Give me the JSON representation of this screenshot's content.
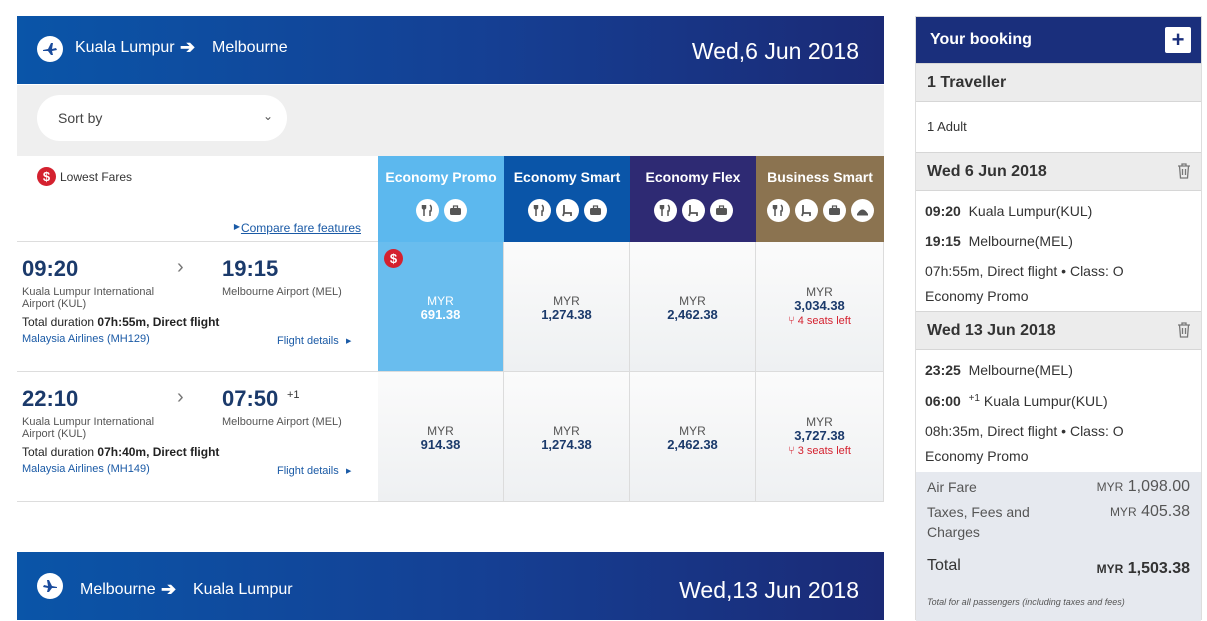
{
  "outbound": {
    "from": "Kuala Lumpur",
    "to": "Melbourne",
    "date": "Wed,6 Jun 2018"
  },
  "return_route": {
    "from": "Melbourne",
    "to": "Kuala Lumpur",
    "date": "Wed,13 Jun 2018"
  },
  "sort": {
    "label": "Sort by"
  },
  "legend": {
    "lowest_fares": "Lowest Fares",
    "compare": "Compare fare features",
    "badge_symbol": "$"
  },
  "fare_classes": [
    {
      "name": "Economy Promo",
      "color": "#5cb8ee",
      "icons": [
        "meal-icon",
        "baggage-icon"
      ]
    },
    {
      "name": "Economy Smart",
      "color": "#0a55a8",
      "icons": [
        "meal-icon",
        "seat-icon",
        "baggage-icon"
      ]
    },
    {
      "name": "Economy Flex",
      "color": "#2e2a73",
      "icons": [
        "meal-icon",
        "seat-icon",
        "baggage-icon"
      ]
    },
    {
      "name": "Business Smart",
      "color": "#8b7350",
      "icons": [
        "meal-icon",
        "seat-icon",
        "baggage-icon",
        "lounge-icon"
      ]
    }
  ],
  "flights": [
    {
      "dep_time": "09:20",
      "arr_time": "19:15",
      "plus_day": "",
      "dep_airport": "Kuala Lumpur International Airport (KUL)",
      "arr_airport": "Melbourne Airport (MEL)",
      "duration_prefix": "Total duration ",
      "duration": "07h:55m, Direct flight",
      "airline": "Malaysia Airlines (MH129)",
      "details": "Flight details",
      "fares": [
        {
          "currency": "MYR",
          "amount": "691.38",
          "seats": ""
        },
        {
          "currency": "MYR",
          "amount": "1,274.38",
          "seats": ""
        },
        {
          "currency": "MYR",
          "amount": "2,462.38",
          "seats": ""
        },
        {
          "currency": "MYR",
          "amount": "3,034.38",
          "seats": "4 seats left"
        }
      ]
    },
    {
      "dep_time": "22:10",
      "arr_time": "07:50",
      "plus_day": "+1",
      "dep_airport": "Kuala Lumpur International Airport (KUL)",
      "arr_airport": "Melbourne Airport (MEL)",
      "duration_prefix": "Total duration ",
      "duration": "07h:40m, Direct flight",
      "airline": "Malaysia Airlines (MH149)",
      "details": "Flight details",
      "fares": [
        {
          "currency": "MYR",
          "amount": "914.38",
          "seats": ""
        },
        {
          "currency": "MYR",
          "amount": "1,274.38",
          "seats": ""
        },
        {
          "currency": "MYR",
          "amount": "2,462.38",
          "seats": ""
        },
        {
          "currency": "MYR",
          "amount": "3,727.38",
          "seats": "3 seats left"
        }
      ]
    }
  ],
  "booking": {
    "title": "Your booking",
    "add_symbol": "+",
    "travellers_title": "1 Traveller",
    "travellers": "1 Adult",
    "legs": [
      {
        "date": "Wed 6 Jun 2018",
        "dep_time": "09:20",
        "dep_place": "Kuala Lumpur(KUL)",
        "arr_time": "19:15",
        "arr_sup": "",
        "arr_place": "Melbourne(MEL)",
        "info": "07h:55m, Direct flight • Class: O",
        "fare": "Economy Promo"
      },
      {
        "date": "Wed 13 Jun 2018",
        "dep_time": "23:25",
        "dep_place": "Melbourne(MEL)",
        "arr_time": "06:00",
        "arr_sup": "+1",
        "arr_place": "Kuala Lumpur(KUL)",
        "info": "08h:35m, Direct flight • Class: O",
        "fare": "Economy Promo"
      }
    ],
    "summary": {
      "air_fare_label": "Air Fare",
      "air_fare_cur": "MYR",
      "air_fare": "1,098.00",
      "taxes_label_1": "Taxes, Fees and",
      "taxes_label_2": "Charges",
      "taxes_cur": "MYR",
      "taxes": "405.38",
      "total_label": "Total",
      "total_cur": "MYR",
      "total": "1,503.38",
      "note": "Total for all passengers (including taxes and fees)"
    }
  }
}
